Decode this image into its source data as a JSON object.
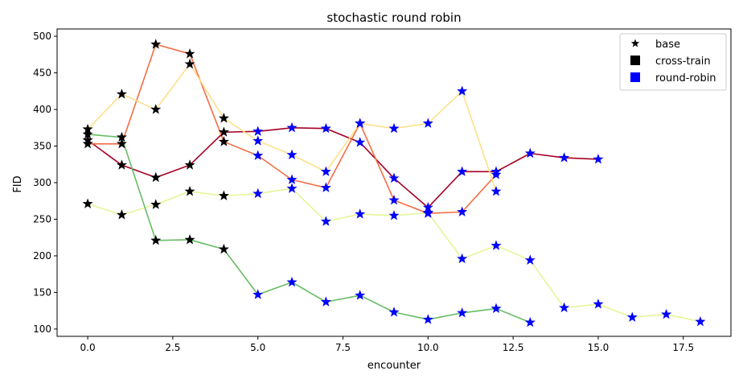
{
  "chart_data": {
    "type": "line",
    "title": "stochastic round robin",
    "xlabel": "encounter",
    "ylabel": "FID",
    "xlim": [
      -0.9,
      18.9
    ],
    "ylim": [
      90,
      510
    ],
    "xticks": [
      0.0,
      2.5,
      5.0,
      7.5,
      10.0,
      12.5,
      15.0,
      17.5
    ],
    "xtick_labels": [
      "0.0",
      "2.5",
      "5.0",
      "7.5",
      "10.0",
      "12.5",
      "15.0",
      "17.5"
    ],
    "yticks": [
      100,
      150,
      200,
      250,
      300,
      350,
      400,
      450,
      500
    ],
    "ytick_labels": [
      "100",
      "150",
      "200",
      "250",
      "300",
      "350",
      "400",
      "450",
      "500"
    ],
    "grid": false,
    "legend": {
      "placement": "top-right",
      "entries": [
        {
          "label": "base",
          "marker": "star",
          "color": "#000000"
        },
        {
          "label": "cross-train",
          "marker": "square",
          "color": "#000000"
        },
        {
          "label": "round-robin",
          "marker": "square",
          "color": "#0000ff"
        }
      ]
    },
    "series": [
      {
        "color": "#a50026",
        "points": [
          {
            "x": 0,
            "y": 358,
            "m": "base"
          },
          {
            "x": 1,
            "y": 324,
            "m": "base"
          },
          {
            "x": 2,
            "y": 307,
            "m": "base"
          },
          {
            "x": 3,
            "y": 324,
            "m": "base"
          },
          {
            "x": 4,
            "y": 369,
            "m": "cross"
          },
          {
            "x": 5,
            "y": 370,
            "m": "rr"
          },
          {
            "x": 6,
            "y": 375,
            "m": "rr"
          },
          {
            "x": 7,
            "y": 374,
            "m": "rr"
          },
          {
            "x": 8,
            "y": 355,
            "m": "rr"
          },
          {
            "x": 9,
            "y": 306,
            "m": "rr"
          },
          {
            "x": 10,
            "y": 266,
            "m": "rr"
          },
          {
            "x": 11,
            "y": 315,
            "m": "rr"
          },
          {
            "x": 12,
            "y": 315,
            "m": "rr"
          },
          {
            "x": 13,
            "y": 340,
            "m": "rr"
          },
          {
            "x": 14,
            "y": 334,
            "m": "rr"
          },
          {
            "x": 15,
            "y": 332,
            "m": "rr"
          }
        ]
      },
      {
        "color": "#f46d43",
        "points": [
          {
            "x": 0,
            "y": 353,
            "m": "base"
          },
          {
            "x": 1,
            "y": 353,
            "m": "base"
          },
          {
            "x": 2,
            "y": 489,
            "m": "base"
          },
          {
            "x": 3,
            "y": 476,
            "m": "base"
          },
          {
            "x": 4,
            "y": 356,
            "m": "base"
          },
          {
            "x": 5,
            "y": 337,
            "m": "rr"
          },
          {
            "x": 6,
            "y": 304,
            "m": "rr"
          },
          {
            "x": 7,
            "y": 293,
            "m": "rr"
          },
          {
            "x": 8,
            "y": 381,
            "m": "rr"
          },
          {
            "x": 9,
            "y": 276,
            "m": "rr"
          },
          {
            "x": 10,
            "y": 258,
            "m": "rr"
          },
          {
            "x": 11,
            "y": 260,
            "m": "rr"
          },
          {
            "x": 12,
            "y": 311,
            "m": "rr"
          }
        ]
      },
      {
        "color": "#fee08b",
        "points": [
          {
            "x": 0,
            "y": 373,
            "m": "base"
          },
          {
            "x": 1,
            "y": 421,
            "m": "base"
          },
          {
            "x": 2,
            "y": 400,
            "m": "base"
          },
          {
            "x": 3,
            "y": 462,
            "m": "base"
          },
          {
            "x": 4,
            "y": 388,
            "m": "base"
          },
          {
            "x": 5,
            "y": 357,
            "m": "rr"
          },
          {
            "x": 6,
            "y": 338,
            "m": "rr"
          },
          {
            "x": 7,
            "y": 315,
            "m": "rr"
          },
          {
            "x": 8,
            "y": 381,
            "m": "rr"
          },
          {
            "x": 9,
            "y": 374,
            "m": "rr"
          },
          {
            "x": 10,
            "y": 381,
            "m": "rr"
          },
          {
            "x": 11,
            "y": 425,
            "m": "rr"
          },
          {
            "x": 12,
            "y": 288,
            "m": "rr"
          }
        ]
      },
      {
        "color": "#e6f598",
        "points": [
          {
            "x": 0,
            "y": 271,
            "m": "base"
          },
          {
            "x": 1,
            "y": 256,
            "m": "base"
          },
          {
            "x": 2,
            "y": 270,
            "m": "base"
          },
          {
            "x": 3,
            "y": 288,
            "m": "base"
          },
          {
            "x": 4,
            "y": 282,
            "m": "base"
          },
          {
            "x": 5,
            "y": 285,
            "m": "rr"
          },
          {
            "x": 6,
            "y": 292,
            "m": "rr"
          },
          {
            "x": 7,
            "y": 247,
            "m": "rr"
          },
          {
            "x": 8,
            "y": 257,
            "m": "rr"
          },
          {
            "x": 9,
            "y": 255,
            "m": "rr"
          },
          {
            "x": 10,
            "y": 259,
            "m": "rr"
          },
          {
            "x": 11,
            "y": 196,
            "m": "rr"
          },
          {
            "x": 12,
            "y": 214,
            "m": "rr"
          },
          {
            "x": 13,
            "y": 194,
            "m": "rr"
          },
          {
            "x": 14,
            "y": 129,
            "m": "rr"
          },
          {
            "x": 15,
            "y": 134,
            "m": "rr"
          },
          {
            "x": 16,
            "y": 116,
            "m": "rr"
          },
          {
            "x": 17,
            "y": 120,
            "m": "rr"
          },
          {
            "x": 18,
            "y": 110,
            "m": "rr"
          }
        ]
      },
      {
        "color": "#66bd63",
        "points": [
          {
            "x": 0,
            "y": 366,
            "m": "base"
          },
          {
            "x": 1,
            "y": 362,
            "m": "base"
          },
          {
            "x": 2,
            "y": 221,
            "m": "base"
          },
          {
            "x": 3,
            "y": 222,
            "m": "base"
          },
          {
            "x": 4,
            "y": 209,
            "m": "base"
          },
          {
            "x": 5,
            "y": 147,
            "m": "rr"
          },
          {
            "x": 6,
            "y": 164,
            "m": "rr"
          },
          {
            "x": 7,
            "y": 137,
            "m": "rr"
          },
          {
            "x": 8,
            "y": 146,
            "m": "rr"
          },
          {
            "x": 9,
            "y": 123,
            "m": "rr"
          },
          {
            "x": 10,
            "y": 113,
            "m": "rr"
          },
          {
            "x": 11,
            "y": 122,
            "m": "rr"
          },
          {
            "x": 12,
            "y": 128,
            "m": "rr"
          },
          {
            "x": 13,
            "y": 109,
            "m": "rr"
          }
        ]
      }
    ]
  }
}
